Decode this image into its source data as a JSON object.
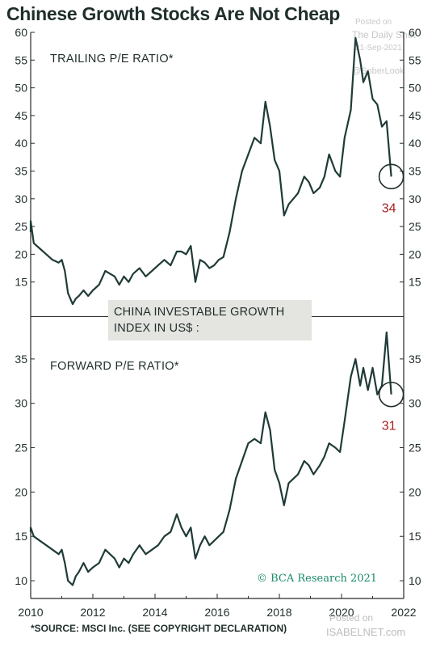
{
  "title": "Chinese Growth Stocks Are Not Cheap",
  "watermark": {
    "posted_on": "Posted on",
    "site": "The Daily Shot",
    "date": "21-Sep-2021",
    "handle": "@SoberLook",
    "bottom_posted": "Posted on",
    "bottom_site": "ISABELNET.com"
  },
  "label_box": [
    "CHINA INVESTABLE GROWTH",
    "INDEX IN US$ :"
  ],
  "credit": "© BCA Research 2021",
  "source": "*SOURCE: MSCI Inc. (SEE COPYRIGHT DECLARATION)",
  "colors": {
    "line": "#1f3b37",
    "callout": "#a62020",
    "credit": "#1a8a6a",
    "box": "#e4e4e0"
  },
  "chart_data": [
    {
      "type": "line",
      "title": "TRAILING P/E RATIO*",
      "ylim": [
        10,
        60
      ],
      "yticks": [
        15,
        20,
        25,
        30,
        35,
        40,
        45,
        50,
        55,
        60
      ],
      "xlim": [
        2010,
        2022
      ],
      "xticks": [
        2010,
        2012,
        2014,
        2016,
        2018,
        2020,
        2022
      ],
      "callout": {
        "x": 2021.6,
        "y": 34,
        "label": "34"
      },
      "x": [
        2009.9,
        2010.0,
        2010.1,
        2010.3,
        2010.5,
        2010.7,
        2010.9,
        2011.0,
        2011.1,
        2011.2,
        2011.35,
        2011.45,
        2011.55,
        2011.7,
        2011.85,
        2012.0,
        2012.2,
        2012.4,
        2012.55,
        2012.7,
        2012.85,
        2013.0,
        2013.15,
        2013.3,
        2013.5,
        2013.7,
        2013.9,
        2014.1,
        2014.3,
        2014.5,
        2014.7,
        2014.85,
        2015.0,
        2015.15,
        2015.3,
        2015.45,
        2015.6,
        2015.75,
        2015.9,
        2016.05,
        2016.2,
        2016.4,
        2016.6,
        2016.8,
        2017.0,
        2017.2,
        2017.4,
        2017.55,
        2017.7,
        2017.85,
        2018.0,
        2018.15,
        2018.3,
        2018.45,
        2018.6,
        2018.8,
        2018.95,
        2019.1,
        2019.3,
        2019.45,
        2019.6,
        2019.8,
        2019.95,
        2020.1,
        2020.3,
        2020.45,
        2020.6,
        2020.7,
        2020.85,
        2021.0,
        2021.15,
        2021.3,
        2021.45,
        2021.6
      ],
      "y": [
        24,
        26,
        22,
        21,
        20,
        19,
        18.5,
        19,
        17,
        13,
        11,
        12,
        12.5,
        13.5,
        12.5,
        13.5,
        14.5,
        17,
        16.5,
        16,
        14.5,
        16,
        15,
        16.5,
        17.5,
        16,
        17,
        18,
        19,
        18,
        20.5,
        20.5,
        20,
        21.5,
        15,
        19,
        18.5,
        17.5,
        18,
        19,
        19.5,
        24,
        30,
        35,
        38,
        41,
        40,
        47.5,
        43,
        37,
        35,
        27,
        29,
        30,
        31,
        34,
        33,
        31,
        32,
        34,
        38,
        35,
        34,
        41,
        46,
        59,
        55,
        51,
        53,
        48,
        47,
        43,
        44,
        34
      ]
    },
    {
      "type": "line",
      "title": "FORWARD P/E RATIO*",
      "ylim": [
        8,
        39
      ],
      "yticks": [
        10,
        15,
        20,
        25,
        30,
        35
      ],
      "xlim": [
        2010,
        2022
      ],
      "xticks": [
        2010,
        2012,
        2014,
        2016,
        2018,
        2020,
        2022
      ],
      "callout": {
        "x": 2021.6,
        "y": 31,
        "label": "31"
      },
      "x": [
        2009.9,
        2010.0,
        2010.1,
        2010.3,
        2010.5,
        2010.7,
        2010.9,
        2011.0,
        2011.1,
        2011.2,
        2011.35,
        2011.45,
        2011.55,
        2011.7,
        2011.85,
        2012.0,
        2012.2,
        2012.4,
        2012.55,
        2012.7,
        2012.85,
        2013.0,
        2013.15,
        2013.3,
        2013.5,
        2013.7,
        2013.9,
        2014.1,
        2014.3,
        2014.5,
        2014.7,
        2014.85,
        2015.0,
        2015.15,
        2015.3,
        2015.45,
        2015.6,
        2015.75,
        2015.9,
        2016.05,
        2016.2,
        2016.4,
        2016.6,
        2016.8,
        2017.0,
        2017.2,
        2017.4,
        2017.55,
        2017.7,
        2017.85,
        2018.0,
        2018.15,
        2018.3,
        2018.45,
        2018.6,
        2018.8,
        2018.95,
        2019.1,
        2019.3,
        2019.45,
        2019.6,
        2019.8,
        2019.95,
        2020.1,
        2020.3,
        2020.45,
        2020.6,
        2020.7,
        2020.85,
        2021.0,
        2021.15,
        2021.3,
        2021.45,
        2021.6
      ],
      "y": [
        15.5,
        16,
        15,
        14.5,
        14,
        13.5,
        13,
        13.5,
        12,
        10,
        9.5,
        10.5,
        11,
        12,
        11,
        11.5,
        12,
        13.5,
        13,
        12.5,
        11.5,
        12.5,
        12,
        13,
        14,
        13,
        13.5,
        14,
        15,
        15.5,
        17.5,
        16,
        15,
        16,
        12.5,
        14,
        15,
        14,
        14.5,
        15,
        15.5,
        18,
        21.5,
        23.5,
        25.5,
        26,
        25.5,
        29,
        27,
        22.5,
        21,
        18.5,
        21,
        21.5,
        22,
        23.5,
        23,
        22,
        23,
        24,
        25.5,
        25,
        24.5,
        28,
        33,
        35,
        32,
        34,
        31.5,
        34,
        31,
        32,
        38,
        31
      ]
    }
  ]
}
